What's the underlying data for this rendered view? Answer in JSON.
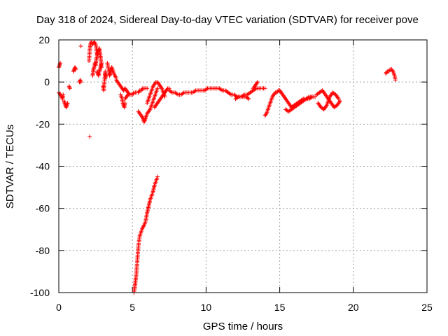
{
  "chart_data": {
    "type": "scatter",
    "title": "Day 318 of 2024, Sidereal Day-to-day VTEC variation (SDTVAR) for receiver pove",
    "xlabel": "GPS time / hours",
    "ylabel": "SDTVAR / TECUs",
    "xlim": [
      0,
      25
    ],
    "ylim": [
      -100,
      20
    ],
    "xticks": [
      0,
      5,
      10,
      15,
      20,
      25
    ],
    "yticks": [
      -100,
      -80,
      -60,
      -40,
      -20,
      0,
      20
    ],
    "xtick_labels": [
      "0",
      "5",
      "10",
      "15",
      "20",
      "25"
    ],
    "ytick_labels": [
      "-100",
      "-80",
      "-60",
      "-40",
      "-20",
      "0",
      "20"
    ],
    "grid": true,
    "marker": "+",
    "color": "#ff0000",
    "segments": [
      {
        "x": [
          0.0,
          0.1,
          0.2,
          0.25,
          0.3
        ],
        "y": [
          -5,
          -6,
          -7,
          -8,
          -6
        ]
      },
      {
        "x": [
          0.0,
          0.05,
          0.1
        ],
        "y": [
          7,
          8,
          9
        ]
      },
      {
        "x": [
          0.35,
          0.4,
          0.45,
          0.5,
          0.55,
          0.6
        ],
        "y": [
          -9,
          -10,
          -11,
          -12,
          -11,
          -10
        ]
      },
      {
        "x": [
          0.7,
          0.75
        ],
        "y": [
          -2,
          -3
        ]
      },
      {
        "x": [
          1.0,
          1.05,
          1.1,
          1.15
        ],
        "y": [
          5,
          6,
          7,
          6
        ]
      },
      {
        "x": [
          1.4,
          1.45,
          1.5
        ],
        "y": [
          0,
          1,
          0
        ]
      },
      {
        "x": [
          1.5
        ],
        "y": [
          17
        ]
      },
      {
        "x": [
          2.1
        ],
        "y": [
          -26
        ]
      },
      {
        "x": [
          2.05,
          2.1,
          2.15,
          2.2,
          2.3,
          2.4,
          2.5,
          2.55,
          2.6
        ],
        "y": [
          10,
          15,
          18,
          19,
          18,
          19,
          18,
          16,
          13
        ]
      },
      {
        "x": [
          2.3,
          2.35,
          2.4,
          2.45,
          2.5,
          2.55,
          2.6,
          2.65,
          2.7,
          2.75,
          2.8,
          2.85,
          2.9
        ],
        "y": [
          3,
          6,
          7,
          9,
          8,
          11,
          12,
          14,
          15,
          16,
          14,
          11,
          7
        ]
      },
      {
        "x": [
          2.6,
          2.65,
          2.7,
          2.75,
          2.8,
          2.85,
          2.9
        ],
        "y": [
          5,
          4,
          3,
          5,
          6,
          8,
          9
        ]
      },
      {
        "x": [
          3.0,
          3.05,
          3.1,
          3.15,
          3.2
        ],
        "y": [
          -2,
          -4,
          0,
          5,
          2
        ]
      },
      {
        "x": [
          3.3,
          3.35,
          3.4,
          3.45,
          3.5,
          3.55,
          3.6,
          3.7,
          3.8,
          3.9
        ],
        "y": [
          9,
          7,
          5,
          3,
          4,
          6,
          7,
          5,
          3,
          2
        ]
      },
      {
        "x": [
          3.9,
          4.0,
          4.1,
          4.2,
          4.3,
          4.4,
          4.5,
          4.6,
          4.7,
          4.8
        ],
        "y": [
          1,
          0,
          -1,
          -2,
          -3,
          -4,
          -3,
          -4,
          -5,
          -6
        ]
      },
      {
        "x": [
          4.2,
          4.3,
          4.35,
          4.4,
          4.45,
          4.5
        ],
        "y": [
          -6,
          -8,
          -10,
          -11,
          -12,
          -10
        ]
      },
      {
        "x": [
          4.5,
          4.6,
          4.7,
          4.8,
          4.9,
          5.0,
          5.1,
          5.2,
          5.3,
          5.4,
          5.5,
          5.6,
          5.7,
          5.8,
          5.9,
          6.0
        ],
        "y": [
          -8,
          -7,
          -6,
          -6,
          -6,
          -6,
          -5,
          -5,
          -5,
          -5,
          -4,
          -4,
          -3,
          -3,
          -3,
          -3
        ]
      },
      {
        "x": [
          5.4,
          5.5,
          5.6,
          5.7,
          5.75,
          5.8,
          5.85,
          5.9,
          6.0,
          6.1,
          6.2,
          6.3,
          6.4,
          6.5,
          6.6,
          6.7
        ],
        "y": [
          -14,
          -15,
          -16,
          -17,
          -18,
          -19,
          -18,
          -17,
          -15,
          -14,
          -13,
          -11,
          -9,
          -7,
          -5,
          -3
        ]
      },
      {
        "x": [
          6.0,
          6.1,
          6.2,
          6.3,
          6.4,
          6.5,
          6.6,
          6.7,
          6.8,
          6.9,
          7.0,
          7.1,
          7.2
        ],
        "y": [
          -10,
          -8,
          -6,
          -4,
          -2,
          -1,
          0,
          0,
          -1,
          -2,
          -3,
          -5,
          -7
        ]
      },
      {
        "x": [
          6.5,
          6.6,
          6.7,
          6.8,
          6.9,
          7.0,
          7.1,
          7.2,
          7.3,
          7.4,
          7.5
        ],
        "y": [
          -12,
          -11,
          -10,
          -9,
          -8,
          -7,
          -6,
          -5,
          -4,
          -3,
          -3
        ]
      },
      {
        "x": [
          7.5,
          7.7,
          7.9,
          8.1,
          8.3,
          8.5,
          8.7,
          8.9,
          9.1,
          9.3,
          9.5,
          9.7,
          9.9,
          10.1,
          10.3,
          10.5,
          10.7,
          10.9,
          11.1,
          11.3,
          11.5
        ],
        "y": [
          -4,
          -5,
          -5,
          -6,
          -6,
          -5,
          -5,
          -5,
          -5,
          -4,
          -4,
          -4,
          -4,
          -3,
          -3,
          -3,
          -3,
          -3,
          -4,
          -4,
          -5
        ]
      },
      {
        "x": [
          11.5,
          11.7,
          11.9,
          12.1,
          12.3,
          12.5,
          12.7,
          12.9
        ],
        "y": [
          -5,
          -6,
          -6,
          -7,
          -7,
          -7,
          -7,
          -8
        ]
      },
      {
        "x": [
          12.0,
          12.2,
          12.4,
          12.6,
          12.8,
          13.0,
          13.2,
          13.4,
          13.6,
          13.8,
          14.0
        ],
        "y": [
          -8,
          -7,
          -7,
          -6,
          -6,
          -5,
          -4,
          -3,
          -3,
          -3,
          -3
        ]
      },
      {
        "x": [
          13.2,
          13.3,
          13.4,
          13.5
        ],
        "y": [
          -3,
          -2,
          -1,
          0
        ]
      },
      {
        "x": [
          14.0,
          14.1,
          14.2,
          14.3,
          14.4,
          14.5,
          14.6,
          14.7,
          14.8,
          14.9,
          15.0
        ],
        "y": [
          -16,
          -15,
          -13,
          -11,
          -9,
          -7,
          -6,
          -5,
          -5,
          -4,
          -4
        ]
      },
      {
        "x": [
          15.0,
          15.2,
          15.4,
          15.6,
          15.8,
          16.0,
          16.2,
          16.4,
          16.6,
          16.8,
          17.0,
          17.2
        ],
        "y": [
          -4,
          -6,
          -8,
          -10,
          -12,
          -11,
          -10,
          -9,
          -8,
          -8,
          -7,
          -7
        ]
      },
      {
        "x": [
          15.4,
          15.6,
          15.8,
          16.0,
          16.2,
          16.4,
          16.6,
          16.8,
          17.0,
          17.2,
          17.4
        ],
        "y": [
          -13,
          -14,
          -13,
          -12,
          -11,
          -10,
          -9,
          -8,
          -8,
          -7,
          -7
        ]
      },
      {
        "x": [
          17.5,
          17.7,
          17.9,
          18.1,
          18.3,
          18.5,
          18.7,
          18.9,
          19.1
        ],
        "y": [
          -6,
          -5,
          -4,
          -6,
          -8,
          -10,
          -12,
          -11,
          -9
        ]
      },
      {
        "x": [
          17.6,
          17.8,
          18.0,
          18.2,
          18.4,
          18.6,
          18.8,
          19.0
        ],
        "y": [
          -10,
          -12,
          -13,
          -11,
          -7,
          -5,
          -6,
          -8
        ]
      },
      {
        "x": [
          22.2,
          22.3,
          22.4,
          22.5,
          22.6,
          22.7,
          22.8,
          22.85
        ],
        "y": [
          4,
          5,
          5,
          6,
          6,
          5,
          3,
          1
        ]
      },
      {
        "x": [
          5.1,
          5.15,
          5.2,
          5.25,
          5.3,
          5.35,
          5.4,
          5.5,
          5.6,
          5.7,
          5.8,
          5.9,
          6.0,
          6.1,
          6.2,
          6.3,
          6.4,
          6.5,
          6.6,
          6.7
        ],
        "y": [
          -100,
          -98,
          -95,
          -92,
          -88,
          -83,
          -78,
          -73,
          -71,
          -69,
          -68,
          -66,
          -62,
          -59,
          -56,
          -54,
          -52,
          -49,
          -47,
          -45
        ]
      }
    ]
  }
}
